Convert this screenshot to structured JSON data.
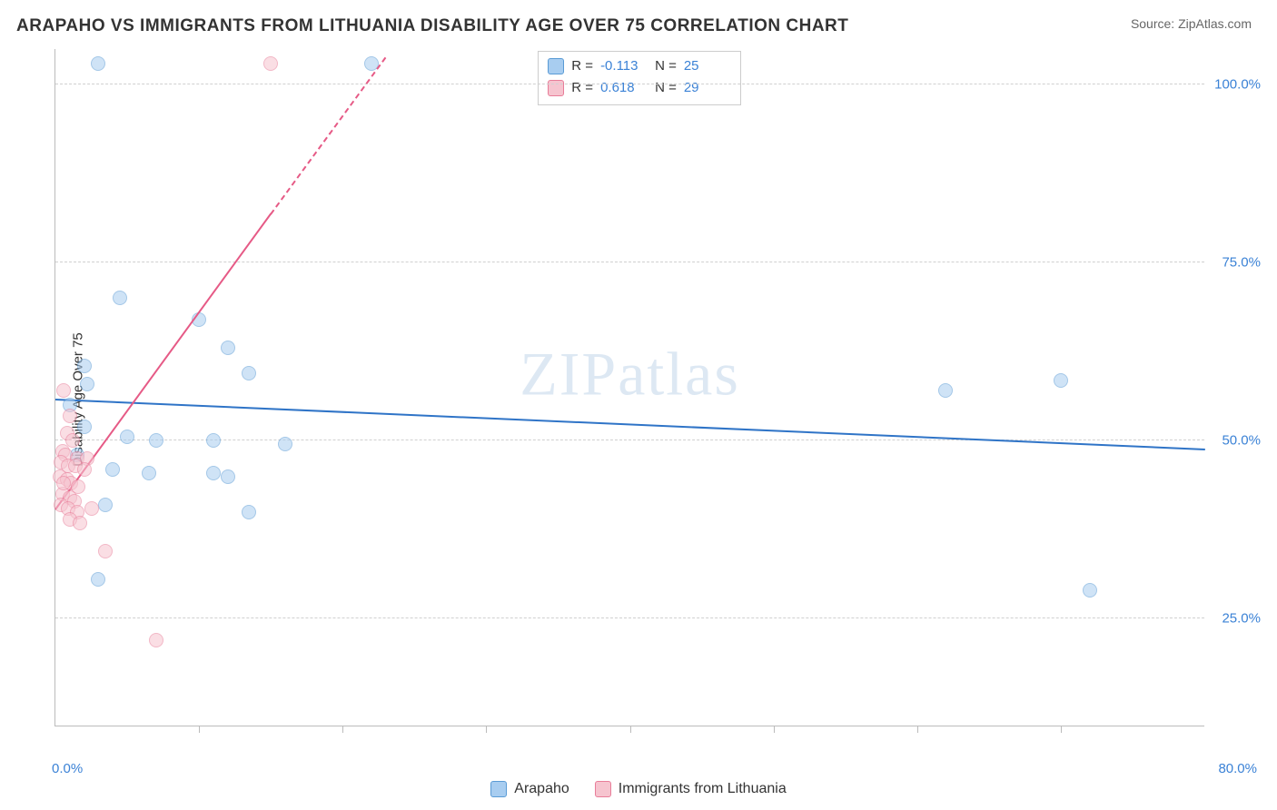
{
  "header": {
    "title": "ARAPAHO VS IMMIGRANTS FROM LITHUANIA DISABILITY AGE OVER 75 CORRELATION CHART",
    "source_prefix": "Source: ",
    "source_name": "ZipAtlas.com"
  },
  "watermark": "ZIPatlas",
  "chart": {
    "type": "scatter",
    "ylabel": "Disability Age Over 75",
    "background_color": "#ffffff",
    "grid_color": "#d0d0d0",
    "axis_color": "#bbbbbb",
    "tick_label_color": "#3b82d6",
    "xlim": [
      0,
      80
    ],
    "ylim": [
      10,
      105
    ],
    "x_tick_positions": [
      10,
      20,
      30,
      40,
      50,
      60,
      70
    ],
    "y_ticks": [
      {
        "v": 25,
        "label": "25.0%"
      },
      {
        "v": 50,
        "label": "50.0%"
      },
      {
        "v": 75,
        "label": "75.0%"
      },
      {
        "v": 100,
        "label": "100.0%"
      }
    ],
    "x_min_label": "0.0%",
    "x_max_label": "80.0%",
    "marker_radius": 8,
    "marker_opacity": 0.55,
    "series": [
      {
        "key": "arapaho",
        "label": "Arapaho",
        "color_fill": "#a8cdf0",
        "color_stroke": "#5a9bd5",
        "R": "-0.113",
        "N": "25",
        "trend": {
          "x1": 0,
          "y1": 56,
          "x2": 80,
          "y2": 49,
          "color": "#2f74c7",
          "width": 2
        },
        "points": [
          [
            3.0,
            103.0
          ],
          [
            22.0,
            103.0
          ],
          [
            4.5,
            70.0
          ],
          [
            10.0,
            67.0
          ],
          [
            12.0,
            63.0
          ],
          [
            13.5,
            59.5
          ],
          [
            2.0,
            60.5
          ],
          [
            2.2,
            58.0
          ],
          [
            62.0,
            57.0
          ],
          [
            70.0,
            58.5
          ],
          [
            5.0,
            50.5
          ],
          [
            7.0,
            50.0
          ],
          [
            11.0,
            50.0
          ],
          [
            16.0,
            49.5
          ],
          [
            4.0,
            46.0
          ],
          [
            6.5,
            45.5
          ],
          [
            11.0,
            45.5
          ],
          [
            12.0,
            45.0
          ],
          [
            3.5,
            41.0
          ],
          [
            13.5,
            40.0
          ],
          [
            3.0,
            30.5
          ],
          [
            72.0,
            29.0
          ],
          [
            1.0,
            55.0
          ],
          [
            2.0,
            52.0
          ],
          [
            1.5,
            48.0
          ]
        ]
      },
      {
        "key": "lithuania",
        "label": "Immigrants from Lithuania",
        "color_fill": "#f6c4cf",
        "color_stroke": "#e87d99",
        "R": "0.618",
        "N": "29",
        "trend": {
          "x1": 0,
          "y1": 40.5,
          "x2": 15,
          "y2": 82,
          "dash_to_x": 23,
          "dash_to_y": 104,
          "color": "#e65a86",
          "width": 2
        },
        "points": [
          [
            15.0,
            103.0
          ],
          [
            0.6,
            57.0
          ],
          [
            1.0,
            53.5
          ],
          [
            0.8,
            51.0
          ],
          [
            1.2,
            50.0
          ],
          [
            0.5,
            48.5
          ],
          [
            0.7,
            48.0
          ],
          [
            1.5,
            47.5
          ],
          [
            2.2,
            47.5
          ],
          [
            0.4,
            47.0
          ],
          [
            0.9,
            46.5
          ],
          [
            1.4,
            46.5
          ],
          [
            2.0,
            46.0
          ],
          [
            0.3,
            45.0
          ],
          [
            0.8,
            44.5
          ],
          [
            1.1,
            44.0
          ],
          [
            1.6,
            43.5
          ],
          [
            0.5,
            42.5
          ],
          [
            1.0,
            42.0
          ],
          [
            1.3,
            41.5
          ],
          [
            0.4,
            41.0
          ],
          [
            0.9,
            40.5
          ],
          [
            1.5,
            40.0
          ],
          [
            1.0,
            39.0
          ],
          [
            1.7,
            38.5
          ],
          [
            2.5,
            40.5
          ],
          [
            3.5,
            34.5
          ],
          [
            7.0,
            22.0
          ],
          [
            0.6,
            44.0
          ]
        ]
      }
    ]
  },
  "stats_box": {
    "rows": [
      {
        "series": "arapaho"
      },
      {
        "series": "lithuania"
      }
    ],
    "labels": {
      "R": "R =",
      "N": "N ="
    }
  }
}
